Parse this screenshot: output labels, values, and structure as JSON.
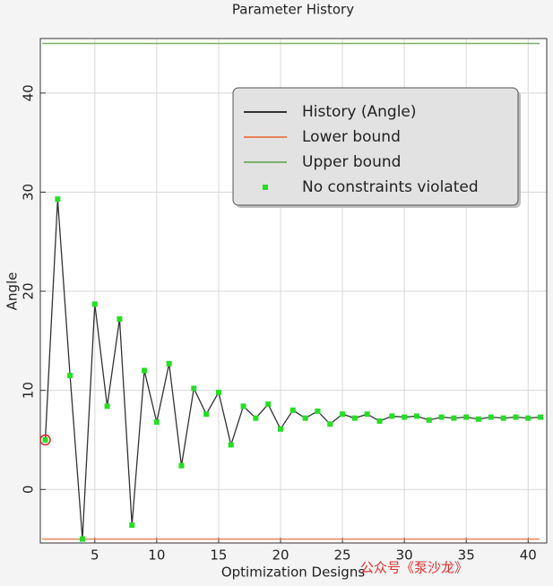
{
  "chart_data": {
    "type": "line",
    "title": "Parameter History",
    "x_label": "Optimization Designs",
    "y_label": "Angle",
    "x": [
      1,
      2,
      3,
      4,
      5,
      6,
      7,
      8,
      9,
      10,
      11,
      12,
      13,
      14,
      15,
      16,
      17,
      18,
      19,
      20,
      21,
      22,
      23,
      24,
      25,
      26,
      27,
      28,
      29,
      30,
      31,
      32,
      33,
      34,
      35,
      36,
      37,
      38,
      39,
      40,
      41
    ],
    "series": [
      {
        "name": "History (Angle)",
        "color": "#333333",
        "style": "line",
        "values": [
          5,
          29.3,
          11.5,
          -5,
          18.7,
          8.4,
          17.2,
          -3.6,
          12,
          6.8,
          12.7,
          2.4,
          10.2,
          7.6,
          9.8,
          4.5,
          8.4,
          7.2,
          8.6,
          6.1,
          8,
          7.2,
          7.9,
          6.6,
          7.6,
          7.2,
          7.6,
          6.9,
          7.4,
          7.3,
          7.4,
          7,
          7.3,
          7.2,
          7.3,
          7.1,
          7.3,
          7.2,
          7.3,
          7.2,
          7.3
        ]
      },
      {
        "name": "Lower bound",
        "color": "#e8825a",
        "style": "hline",
        "value": -5
      },
      {
        "name": "Upper bound",
        "color": "#7ab06a",
        "style": "hline",
        "value": 45
      },
      {
        "name": "No constraints violated",
        "color": "#22e022",
        "style": "markers",
        "values": [
          5,
          29.3,
          11.5,
          -5,
          18.7,
          8.4,
          17.2,
          -3.6,
          12,
          6.8,
          12.7,
          2.4,
          10.2,
          7.6,
          9.8,
          4.5,
          8.4,
          7.2,
          8.6,
          6.1,
          8,
          7.2,
          7.9,
          6.6,
          7.6,
          7.2,
          7.6,
          6.9,
          7.4,
          7.3,
          7.4,
          7,
          7.3,
          7.2,
          7.3,
          7.1,
          7.3,
          7.2,
          7.3,
          7.2,
          7.3
        ]
      }
    ],
    "xlim": [
      0.6,
      41.5
    ],
    "ylim": [
      -5.4,
      45.5
    ],
    "xticks": [
      5,
      10,
      15,
      20,
      25,
      30,
      35,
      40
    ],
    "yticks": [
      0,
      10,
      20,
      30,
      40
    ],
    "grid": true,
    "legend": "upper right",
    "watermark": "公众号《泵沙龙》"
  }
}
